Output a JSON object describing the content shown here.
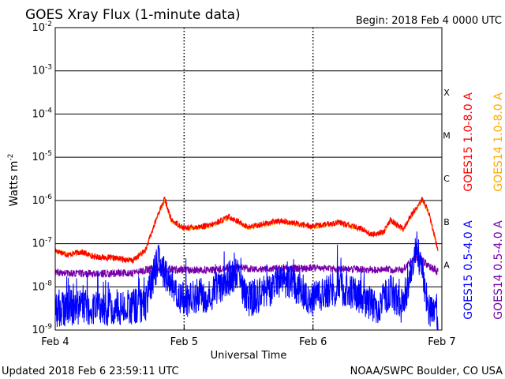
{
  "chart_data": {
    "type": "line",
    "title": "GOES Xray Flux (1-minute data)",
    "begin_label": "Begin:  2018 Feb 4 0000 UTC",
    "xlabel": "Universal Time",
    "ylabel": "Watts m",
    "ylabel_sup": "-2",
    "yscale": "log",
    "ylim": [
      1e-09,
      0.01
    ],
    "xlim": [
      "2018-02-04",
      "2018-02-07"
    ],
    "grid": true,
    "x_ticks": [
      "Feb 4",
      "Feb 5",
      "Feb 6",
      "Feb 7"
    ],
    "y_ticks": [
      {
        "base": "10",
        "exp": "-9",
        "value": 1e-09
      },
      {
        "base": "10",
        "exp": "-8",
        "value": 1e-08
      },
      {
        "base": "10",
        "exp": "-7",
        "value": 1e-07
      },
      {
        "base": "10",
        "exp": "-6",
        "value": 1e-06
      },
      {
        "base": "10",
        "exp": "-5",
        "value": 1e-05
      },
      {
        "base": "10",
        "exp": "-4",
        "value": 0.0001
      },
      {
        "base": "10",
        "exp": "-3",
        "value": 0.001
      },
      {
        "base": "10",
        "exp": "-2",
        "value": 0.01
      }
    ],
    "flare_classes": [
      {
        "label": "X",
        "value": 0.00032
      },
      {
        "label": "M",
        "value": 3.2e-05
      },
      {
        "label": "C",
        "value": 3.2e-06
      },
      {
        "label": "B",
        "value": 3.2e-07
      },
      {
        "label": "A",
        "value": 3.2e-08
      }
    ],
    "legend_position": "right",
    "series": [
      {
        "name": "GOES15 1.0-8.0 A",
        "color": "#ff0000",
        "x": [
          0,
          0.1,
          0.2,
          0.3,
          0.5,
          0.6,
          0.7,
          0.8,
          0.85,
          0.9,
          1.0,
          1.2,
          1.35,
          1.5,
          1.6,
          1.75,
          2.0,
          2.2,
          2.4,
          2.45,
          2.55,
          2.6,
          2.7,
          2.75,
          2.85,
          2.9,
          2.97
        ],
        "y": [
          7e-08,
          5.5e-08,
          6.5e-08,
          5e-08,
          4.5e-08,
          4e-08,
          7e-08,
          5e-07,
          1.1e-06,
          3.5e-07,
          2.3e-07,
          2.6e-07,
          4.2e-07,
          2.4e-07,
          2.8e-07,
          3.4e-07,
          2.5e-07,
          3.1e-07,
          2.1e-07,
          1.6e-07,
          1.9e-07,
          3.5e-07,
          2.2e-07,
          4e-07,
          1.1e-06,
          5e-07,
          7e-08
        ]
      },
      {
        "name": "GOES14 1.0-8.0 A",
        "color": "#ffaa00",
        "x": [
          0,
          0.1,
          0.2,
          0.3,
          0.5,
          0.6,
          0.7,
          0.8,
          0.85,
          0.9,
          1.0,
          1.2,
          1.35,
          1.5,
          1.6,
          1.75,
          2.0,
          2.2,
          2.4,
          2.45,
          2.55,
          2.6,
          2.7,
          2.75,
          2.85,
          2.9,
          2.97
        ],
        "y": [
          7e-08,
          5.6e-08,
          6.4e-08,
          5.1e-08,
          4.6e-08,
          4.1e-08,
          7.2e-08,
          5e-07,
          1e-06,
          3.4e-07,
          2.2e-07,
          2.5e-07,
          4e-07,
          2.3e-07,
          2.7e-07,
          3.3e-07,
          2.4e-07,
          3e-07,
          2e-07,
          1.6e-07,
          1.8e-07,
          3.4e-07,
          2.1e-07,
          3.8e-07,
          1e-06,
          4.8e-07,
          7e-08
        ]
      },
      {
        "name": "GOES15 0.5-4.0 A",
        "color": "#0000ff",
        "x": [
          0,
          0.2,
          0.4,
          0.6,
          0.7,
          0.8,
          0.9,
          1.0,
          1.2,
          1.4,
          1.5,
          1.6,
          1.8,
          2.0,
          2.2,
          2.4,
          2.5,
          2.6,
          2.7,
          2.8,
          2.85,
          2.9,
          2.97
        ],
        "y": [
          3e-09,
          3.5e-09,
          3e-09,
          3.5e-09,
          4e-09,
          4e-08,
          1e-08,
          5e-09,
          7e-09,
          2e-08,
          5e-09,
          7e-09,
          1.5e-08,
          5e-09,
          1e-08,
          5e-09,
          3e-09,
          8e-09,
          3e-09,
          1e-07,
          2e-08,
          3e-09,
          2e-09
        ]
      },
      {
        "name": "GOES14 0.5-4.0 A",
        "color": "#7700aa",
        "x": [
          0,
          0.3,
          0.6,
          0.8,
          0.9,
          1.2,
          1.4,
          1.6,
          2.0,
          2.4,
          2.7,
          2.8,
          2.97
        ],
        "y": [
          2.1e-08,
          2e-08,
          2.1e-08,
          2.8e-08,
          2.5e-08,
          2.4e-08,
          2.8e-08,
          2.6e-08,
          2.7e-08,
          2.5e-08,
          2.5e-08,
          5e-08,
          2.2e-08
        ]
      }
    ]
  },
  "footer": {
    "updated": "Updated 2018 Feb  6 23:59:11 UTC",
    "source": "NOAA/SWPC Boulder, CO USA"
  }
}
